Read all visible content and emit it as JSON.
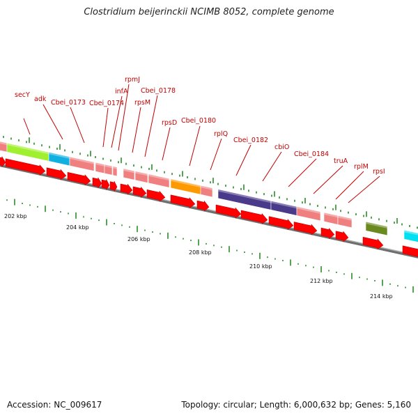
{
  "title": "Clostridium beijerinckii NCIMB 8052, complete genome",
  "footer": {
    "accession": "Accession: NC_009617",
    "stats": "Topology: circular; Length: 6,000,632 bp; Genes: 5,160"
  },
  "axis_labels": [
    "202 kbp",
    "204 kbp",
    "206 kbp",
    "208 kbp",
    "210 kbp",
    "212 kbp",
    "214 kbp"
  ],
  "gene_labels": [
    "secY",
    "adk",
    "Cbei_0173",
    "Cbei_0174",
    "infA",
    "rpmJ",
    "rpsM",
    "Cbei_0178",
    "rpsD",
    "Cbei_0180",
    "rplQ",
    "Cbei_0182",
    "cbiO",
    "Cbei_0184",
    "truA",
    "rplM",
    "rpsI"
  ],
  "colors": {
    "label_text": "#c00000",
    "leader_line": "#c00000",
    "gene_default": "#f08080",
    "arrow": "#ff0000",
    "baseline": "#808080",
    "tick": "#2a8a2a",
    "gene_green": "#a0f030",
    "gene_blue": "#10b0e0",
    "gene_orange": "#ff9900",
    "gene_purple": "#4a3a8a",
    "gene_olive": "#6a8a20",
    "gene_cyan": "#00e0f0"
  }
}
